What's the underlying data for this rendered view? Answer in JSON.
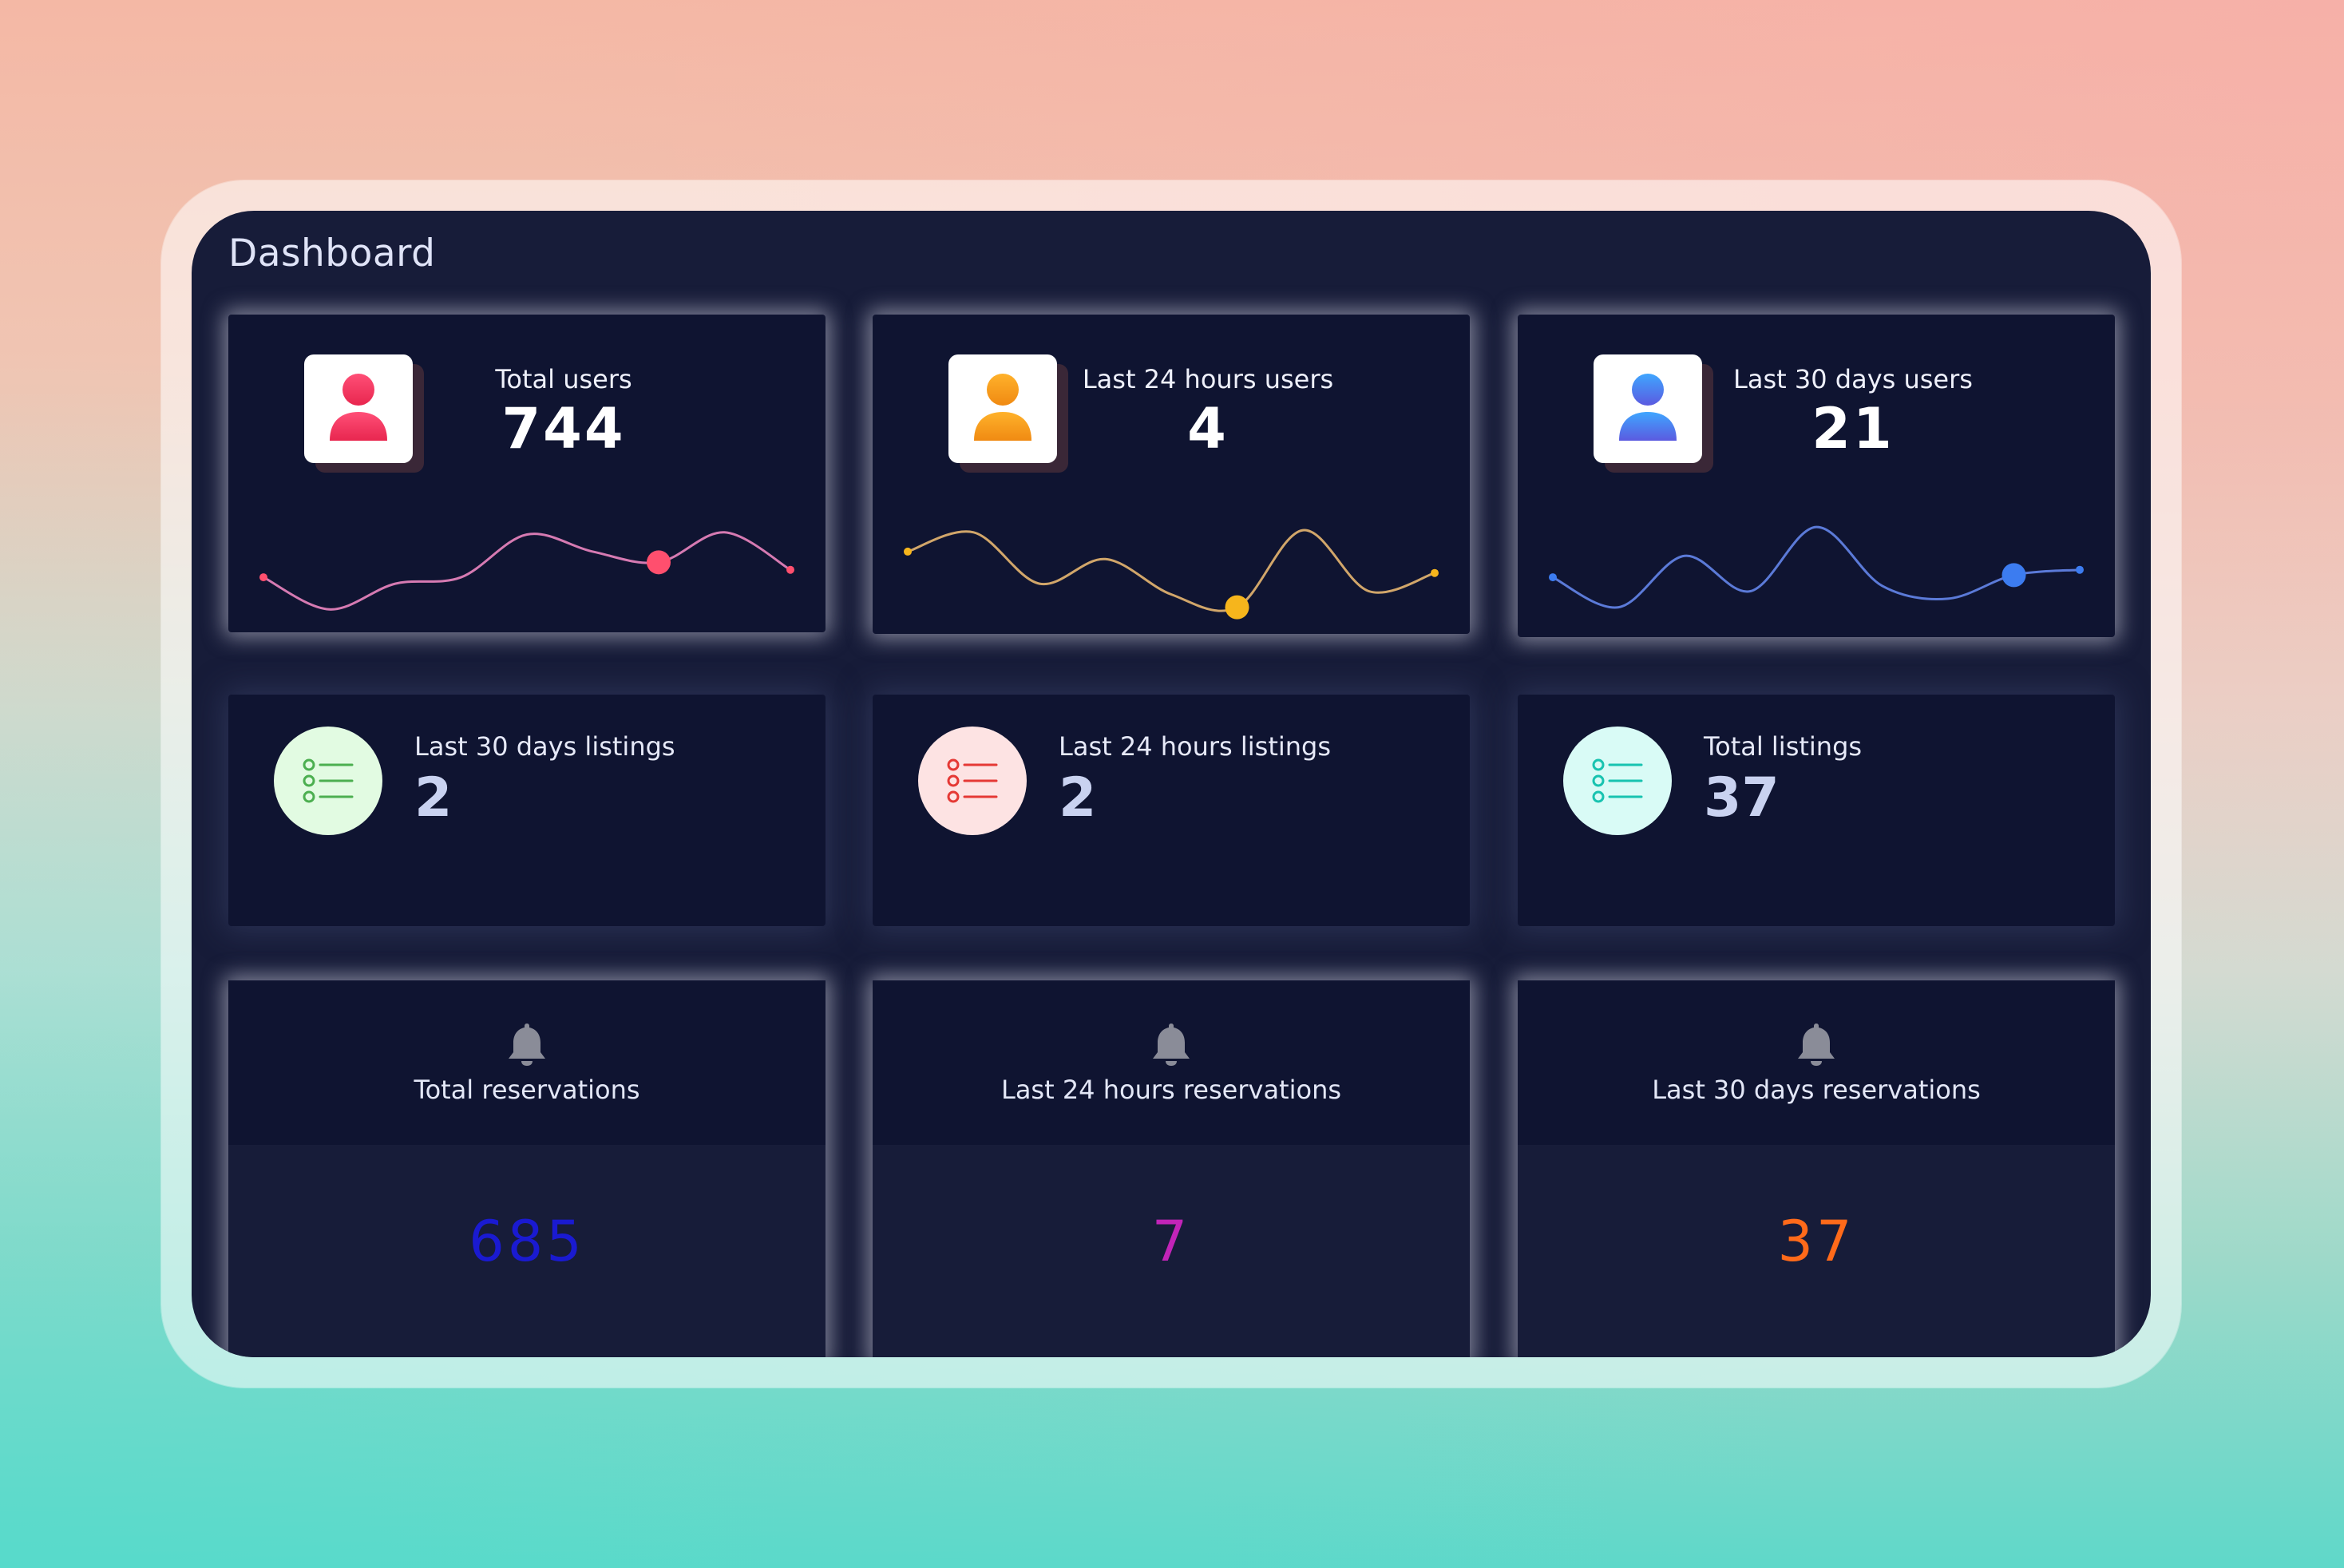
{
  "header": {
    "title": "Dashboard"
  },
  "user_cards": [
    {
      "label": "Total users",
      "value": "744",
      "avatar_colors": [
        "#ff4f77",
        "#e8264f"
      ],
      "line_color": "#d67ab2",
      "marker_color": "#ff4f6e",
      "end_color": "#ff4f6e",
      "trend": [
        0.38,
        0.08,
        0.32,
        0.38,
        0.78,
        0.62,
        0.52,
        0.8,
        0.45
      ],
      "highlight_index": 6
    },
    {
      "label": "Last 24 hours users",
      "value": "4",
      "avatar_colors": [
        "#ffb22b",
        "#f08a12"
      ],
      "line_color": "#d1a66a",
      "marker_color": "#f6b51c",
      "end_color": "#f6b51c",
      "trend": [
        0.62,
        0.8,
        0.32,
        0.55,
        0.22,
        0.1,
        0.82,
        0.25,
        0.42
      ],
      "highlight_index": 5
    },
    {
      "label": "Last 30 days users",
      "value": "21",
      "avatar_colors": [
        "#3fa6ff",
        "#5b5ae0"
      ],
      "line_color": "#5b7ad8",
      "marker_color": "#3c7cf0",
      "end_color": "#3c7cf0",
      "trend": [
        0.38,
        0.1,
        0.58,
        0.25,
        0.85,
        0.3,
        0.18,
        0.4,
        0.45
      ],
      "highlight_index": 7
    }
  ],
  "listing_cards": [
    {
      "label": "Last 30 days listings",
      "value": "2",
      "circle_color": "#e2fbe2",
      "icon_color": "#4caf50"
    },
    {
      "label": "Last 24 hours listings",
      "value": "2",
      "circle_color": "#fde3e3",
      "icon_color": "#e53935"
    },
    {
      "label": "Total listings",
      "value": "37",
      "circle_color": "#d9fbf6",
      "icon_color": "#18c3b0"
    }
  ],
  "reservation_cards": [
    {
      "label": "Total reservations",
      "value": "685",
      "value_color": "#1a1ad1",
      "icon": "bell-icon"
    },
    {
      "label": "Last 24 hours reservations",
      "value": "7",
      "value_color": "#c224b8",
      "icon": "bell-icon"
    },
    {
      "label": "Last 30 days reservations",
      "value": "37",
      "value_color": "#ff6a1a",
      "icon": "bell-icon"
    }
  ]
}
